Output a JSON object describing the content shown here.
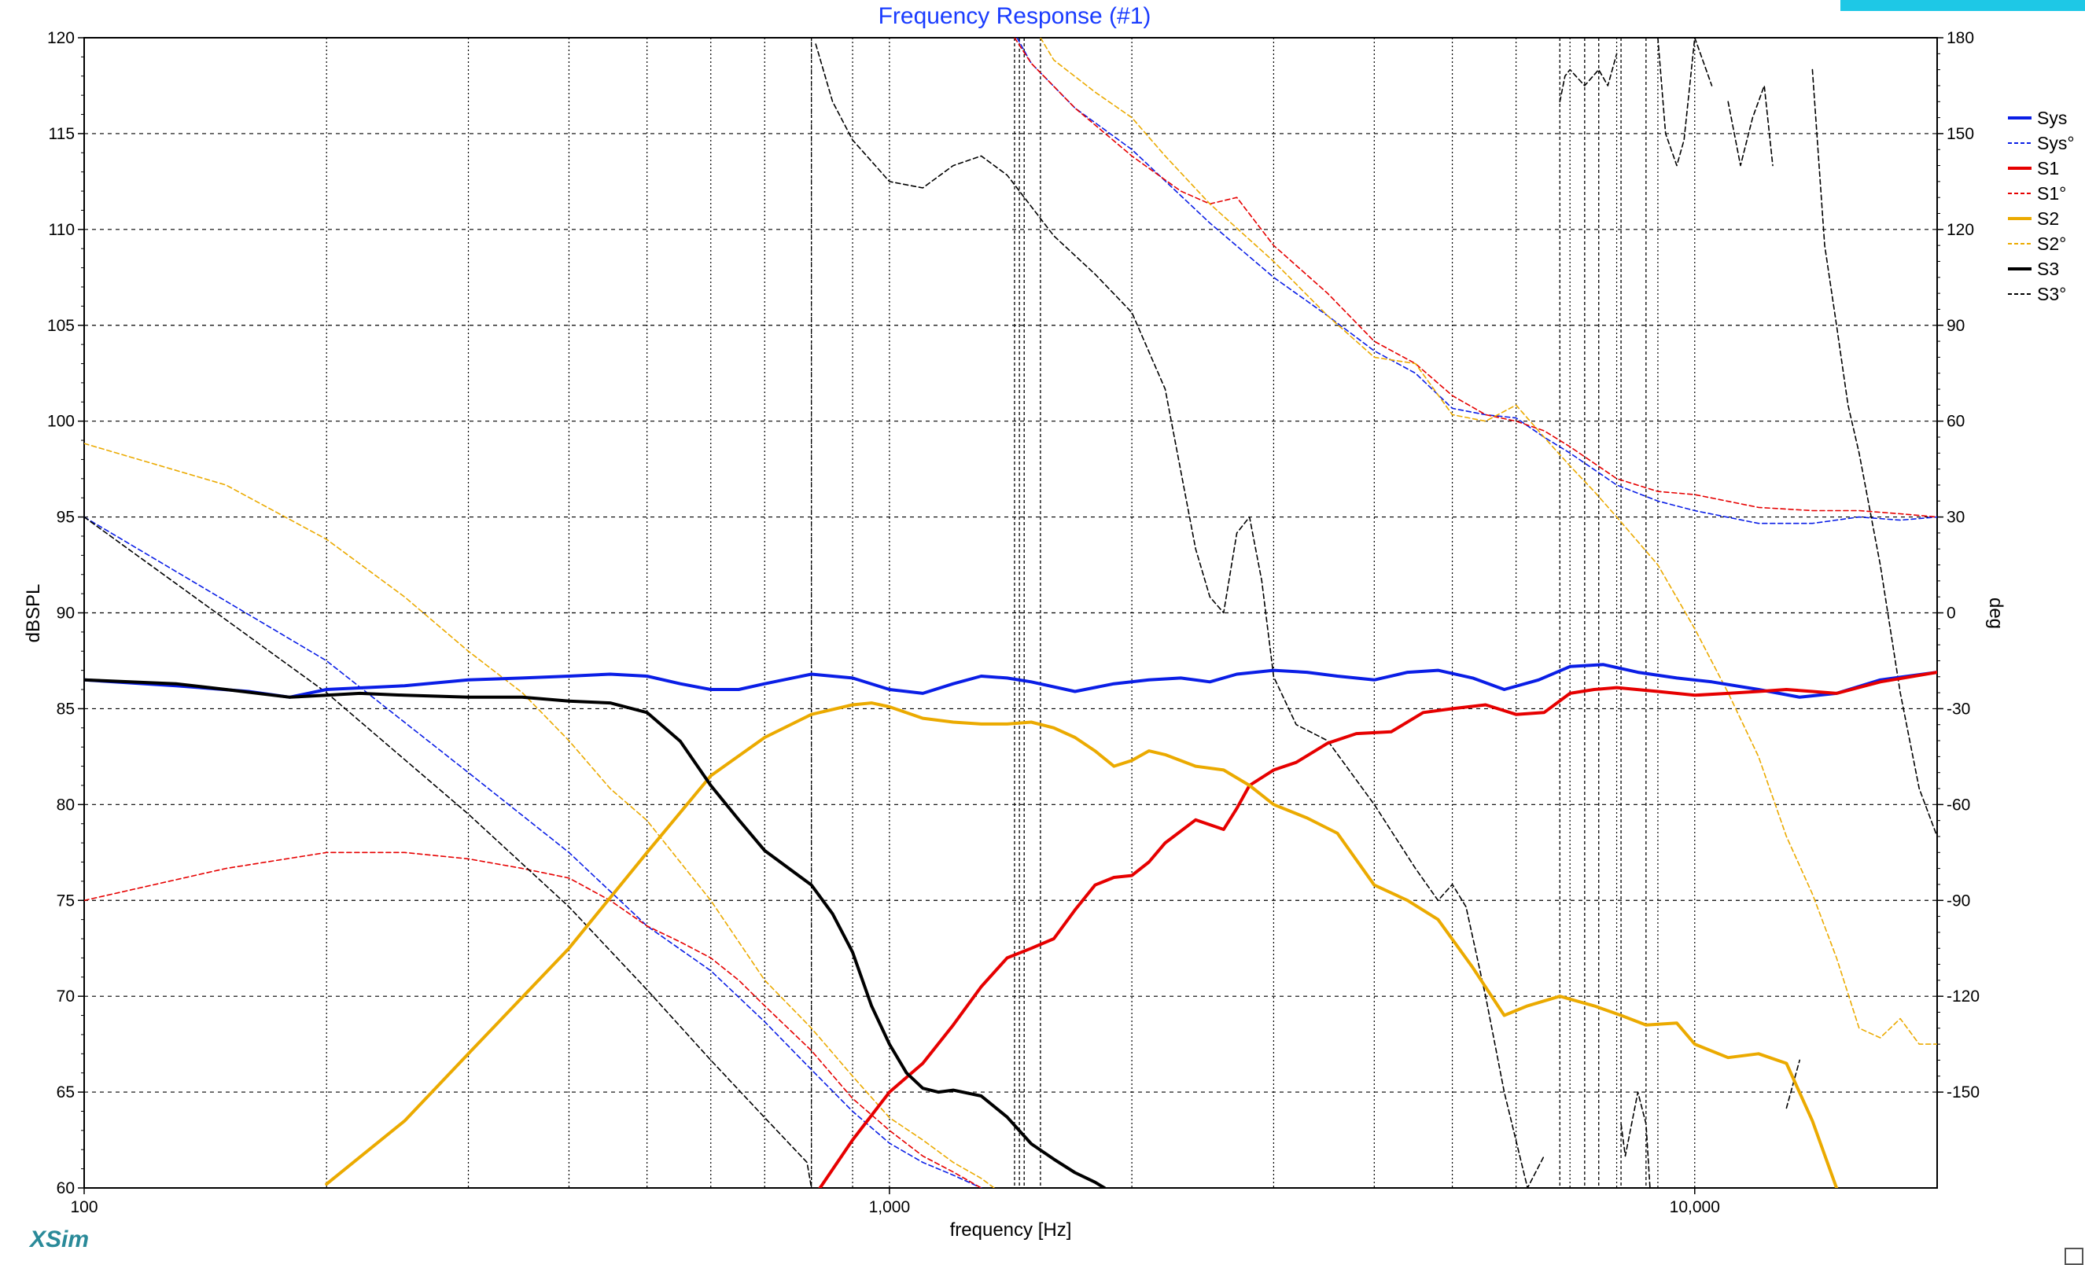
{
  "app": {
    "brand": "XSim"
  },
  "chart_data": {
    "type": "line",
    "title": "Frequency Response (#1)",
    "xlabel": "frequency [Hz]",
    "ylabel": "dBSPL",
    "y2label": "deg",
    "xscale": "log",
    "xlim": [
      100,
      20000
    ],
    "ylim": [
      60,
      120
    ],
    "y2lim": [
      -180,
      180
    ],
    "grid": true,
    "legend_position": "right",
    "x_tick_labels": [
      {
        "value": 100,
        "label": "100"
      },
      {
        "value": 1000,
        "label": "1,000"
      },
      {
        "value": 10000,
        "label": "10,000"
      }
    ],
    "y_ticks": [
      60,
      65,
      70,
      75,
      80,
      85,
      90,
      95,
      100,
      105,
      110,
      115,
      120
    ],
    "y2_ticks": [
      180,
      150,
      120,
      90,
      60,
      30,
      0,
      -30,
      -60,
      -90,
      -120,
      -150
    ],
    "phase_vlines": [
      800,
      1430,
      1450,
      1470,
      1540,
      6800,
      7300,
      7600,
      8100,
      8700
    ],
    "series": [
      {
        "name": "Sys",
        "color": "#0a1ee6",
        "style": "solid",
        "axis": "left",
        "x": [
          100,
          130,
          160,
          180,
          200,
          250,
          300,
          350,
          400,
          450,
          500,
          550,
          600,
          650,
          700,
          800,
          900,
          1000,
          1100,
          1200,
          1300,
          1400,
          1500,
          1700,
          1900,
          2100,
          2300,
          2500,
          2700,
          3000,
          3300,
          3600,
          4000,
          4400,
          4800,
          5300,
          5800,
          6400,
          7000,
          7700,
          8500,
          9500,
          10500,
          12000,
          13500,
          15000,
          17000,
          20000
        ],
        "y": [
          86.5,
          86.2,
          85.9,
          85.6,
          86.0,
          86.2,
          86.5,
          86.6,
          86.7,
          86.8,
          86.7,
          86.3,
          86.0,
          86.0,
          86.3,
          86.8,
          86.6,
          86.0,
          85.8,
          86.3,
          86.7,
          86.6,
          86.4,
          85.9,
          86.3,
          86.5,
          86.6,
          86.4,
          86.8,
          87.0,
          86.9,
          86.7,
          86.5,
          86.9,
          87.0,
          86.6,
          86.0,
          86.5,
          87.2,
          87.3,
          86.9,
          86.6,
          86.4,
          86.0,
          85.6,
          85.8,
          86.5,
          86.9
        ]
      },
      {
        "name": "Sys°",
        "color": "#0a1ee6",
        "style": "dashed",
        "axis": "right",
        "x": [
          100,
          200,
          300,
          400,
          500,
          600,
          700,
          800,
          900,
          1000,
          1100,
          1200,
          1300,
          1400,
          1440,
          1440.1,
          1500,
          1700,
          2000,
          2500,
          3000,
          3500,
          4000,
          4500,
          5000,
          5500,
          6000,
          6500,
          7000,
          8000,
          9000,
          10000,
          12000,
          14000,
          16000,
          18000,
          20000
        ],
        "y": [
          30,
          -15,
          -50,
          -75,
          -98,
          -112,
          -128,
          -143,
          -156,
          -166,
          -172,
          -176,
          -180,
          -183,
          -185,
          180,
          172,
          158,
          145,
          122,
          105,
          93,
          82,
          75,
          64,
          62,
          61,
          55,
          50,
          40,
          35,
          32,
          28,
          28,
          30,
          29,
          30
        ]
      },
      {
        "name": "S1",
        "color": "#e60000",
        "style": "solid",
        "axis": "left",
        "x": [
          820,
          900,
          1000,
          1100,
          1200,
          1300,
          1400,
          1500,
          1600,
          1700,
          1800,
          1900,
          2000,
          2100,
          2200,
          2400,
          2600,
          2700,
          2800,
          3000,
          3200,
          3500,
          3800,
          4200,
          4600,
          5000,
          5500,
          6000,
          6500,
          7000,
          7500,
          8000,
          9000,
          10000,
          11000,
          12000,
          13000,
          14000,
          15000,
          17000,
          20000
        ],
        "y": [
          60.0,
          62.5,
          65.0,
          66.5,
          68.5,
          70.5,
          72.0,
          72.5,
          73.0,
          74.5,
          75.8,
          76.2,
          76.3,
          77.0,
          78.0,
          79.2,
          78.7,
          79.8,
          81.0,
          81.8,
          82.2,
          83.2,
          83.7,
          83.8,
          84.8,
          85.0,
          85.2,
          84.7,
          84.8,
          85.8,
          86.0,
          86.1,
          85.9,
          85.7,
          85.8,
          85.9,
          86.0,
          85.9,
          85.8,
          86.4,
          86.9
        ]
      },
      {
        "name": "S1°",
        "color": "#e60000",
        "style": "dashed",
        "axis": "right",
        "x": [
          100,
          150,
          200,
          250,
          300,
          350,
          400,
          450,
          500,
          550,
          600,
          650,
          700,
          800,
          900,
          1000,
          1100,
          1200,
          1300,
          1400,
          1430,
          1430.1,
          1500,
          1700,
          2000,
          2300,
          2500,
          2700,
          3000,
          3500,
          4000,
          4500,
          5000,
          5500,
          6000,
          6500,
          7000,
          8000,
          9000,
          10000,
          12000,
          14000,
          16000,
          18000,
          20000
        ],
        "y": [
          -90,
          -80,
          -75,
          -75,
          -77,
          -80,
          -83,
          -90,
          -98,
          -103,
          -108,
          -115,
          -123,
          -137,
          -152,
          -162,
          -170,
          -175,
          -180,
          -185,
          -187,
          180,
          172,
          158,
          143,
          132,
          128,
          130,
          115,
          100,
          85,
          78,
          68,
          62,
          60,
          57,
          52,
          42,
          38,
          37,
          33,
          32,
          32,
          31,
          30
        ]
      },
      {
        "name": "S2",
        "color": "#ebaa00",
        "style": "solid",
        "axis": "left",
        "x": [
          200,
          250,
          300,
          400,
          500,
          600,
          700,
          800,
          900,
          950,
          1000,
          1100,
          1200,
          1300,
          1400,
          1500,
          1600,
          1700,
          1800,
          1900,
          2000,
          2100,
          2200,
          2400,
          2600,
          2800,
          3000,
          3300,
          3600,
          4000,
          4400,
          4800,
          5300,
          5800,
          6200,
          6800,
          7500,
          8100,
          8700,
          9500,
          10000,
          11000,
          12000,
          13000,
          14000,
          15000
        ],
        "y": [
          60.2,
          63.5,
          67.0,
          72.5,
          77.5,
          81.5,
          83.5,
          84.7,
          85.2,
          85.3,
          85.1,
          84.5,
          84.3,
          84.2,
          84.2,
          84.3,
          84.0,
          83.5,
          82.8,
          82.0,
          82.3,
          82.8,
          82.6,
          82.0,
          81.8,
          81.0,
          80.0,
          79.3,
          78.5,
          75.8,
          75.0,
          74.0,
          71.5,
          69.0,
          69.5,
          70.0,
          69.5,
          69.0,
          68.5,
          68.6,
          67.5,
          66.8,
          67.0,
          66.5,
          63.5,
          60.0
        ]
      },
      {
        "name": "S2°",
        "color": "#ebaa00",
        "style": "dashed",
        "axis": "right",
        "x": [
          100,
          150,
          200,
          250,
          300,
          350,
          400,
          450,
          500,
          600,
          700,
          800,
          900,
          1000,
          1100,
          1200,
          1300,
          1400,
          1500,
          1540,
          1540.1,
          1600,
          1800,
          2000,
          2200,
          2500,
          3000,
          3500,
          4000,
          4500,
          5000,
          5500,
          6000,
          6500,
          7000,
          7500,
          8000,
          9000,
          10000,
          11000,
          12000,
          13000,
          14000,
          15000,
          16000,
          17000,
          18000,
          19000,
          20000
        ],
        "y": [
          53,
          40,
          23,
          5,
          -12,
          -25,
          -40,
          -55,
          -65,
          -90,
          -115,
          -130,
          -145,
          -158,
          -165,
          -172,
          -177,
          -183,
          -190,
          -193,
          180,
          173,
          163,
          155,
          143,
          128,
          110,
          93,
          80,
          78,
          62,
          60,
          65,
          55,
          46,
          38,
          30,
          15,
          -5,
          -25,
          -45,
          -70,
          -88,
          -108,
          -130,
          -133,
          -127,
          -135,
          -135
        ]
      },
      {
        "name": "S3",
        "color": "#000000",
        "style": "solid",
        "axis": "left",
        "x": [
          100,
          130,
          150,
          180,
          200,
          220,
          250,
          300,
          350,
          400,
          450,
          500,
          550,
          600,
          650,
          700,
          800,
          850,
          900,
          950,
          1000,
          1050,
          1100,
          1150,
          1200,
          1300,
          1400,
          1500,
          1600,
          1700,
          1800,
          1850
        ],
        "y": [
          86.5,
          86.3,
          86.0,
          85.6,
          85.7,
          85.8,
          85.7,
          85.6,
          85.6,
          85.4,
          85.3,
          84.8,
          83.3,
          81.0,
          79.2,
          77.6,
          75.8,
          74.3,
          72.3,
          69.5,
          67.5,
          66.0,
          65.2,
          65.0,
          65.1,
          64.8,
          63.7,
          62.3,
          61.5,
          60.8,
          60.3,
          60.0
        ]
      },
      {
        "name": "S3°",
        "color": "#000000",
        "style": "dashed",
        "axis": "right",
        "x": [
          100,
          200,
          300,
          400,
          500,
          600,
          700,
          790,
          800,
          810,
          850,
          900,
          1000,
          1100,
          1200,
          1300,
          1400,
          1600,
          1800,
          2000,
          2200,
          2400,
          2500,
          2600,
          2700,
          2800,
          2900,
          3000,
          3200,
          3500,
          4000,
          4500,
          4800,
          5000,
          5200,
          5500,
          5800,
          6200,
          6500,
          6800,
          6900,
          7000,
          7300,
          7600,
          7800,
          8000,
          8100,
          8200,
          8500,
          8700,
          8800,
          9000,
          9200,
          9500,
          9700,
          10000,
          10500,
          10800,
          11000,
          11400,
          11800,
          12200,
          12500,
          13000,
          13500,
          14000,
          14500,
          15000,
          15500,
          16000,
          17000,
          18000,
          19000,
          20000
        ],
        "y": [
          30,
          -25,
          -63,
          -92,
          -118,
          -140,
          -158,
          -172,
          -180,
          178,
          160,
          148,
          135,
          133,
          140,
          143,
          137,
          118,
          106,
          94,
          70,
          20,
          5,
          0,
          25,
          30,
          10,
          -20,
          -35,
          -40,
          -60,
          -80,
          -90,
          -85,
          -92,
          -120,
          -150,
          -180,
          -170,
          160,
          168,
          170,
          165,
          170,
          165,
          175,
          -160,
          -170,
          -150,
          -160,
          -180,
          180,
          150,
          140,
          148,
          180,
          165,
          -170,
          160,
          140,
          155,
          165,
          140,
          -155,
          -140,
          170,
          115,
          90,
          65,
          50,
          15,
          -25,
          -55,
          -70
        ]
      }
    ]
  }
}
